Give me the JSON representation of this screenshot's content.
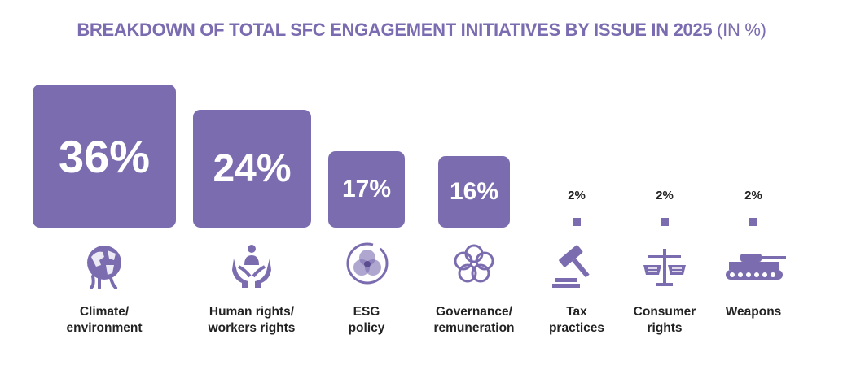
{
  "title": "BREAKDOWN OF TOTAL SFC ENGAGEMENT INITIATIVES BY ISSUE IN 2025",
  "unit": "(IN %)",
  "colors": {
    "accent": "#7b6cb0",
    "text": "#222222"
  },
  "chart_data": {
    "type": "bar",
    "categories": [
      "Climate/ environment",
      "Human rights/ workers rights",
      "ESG policy",
      "Governance/ remuneration",
      "Tax practices",
      "Consumer rights",
      "Weapons"
    ],
    "values": [
      36,
      24,
      17,
      16,
      2,
      2,
      2
    ],
    "value_labels": [
      "36%",
      "24%",
      "17%",
      "16%",
      "2%",
      "2%",
      "2%"
    ],
    "title": "BREAKDOWN OF TOTAL SFC ENGAGEMENT INITIATIVES BY ISSUE IN 2025",
    "unit": "(IN %)"
  },
  "items": [
    {
      "value_label": "36%",
      "label_lines": [
        "Climate/",
        "environment"
      ],
      "icon": "globe-icon"
    },
    {
      "value_label": "24%",
      "label_lines": [
        "Human rights/",
        "workers rights"
      ],
      "icon": "hands-people-icon"
    },
    {
      "value_label": "17%",
      "label_lines": [
        "ESG",
        "policy"
      ],
      "icon": "venn-circle-icon"
    },
    {
      "value_label": "16%",
      "label_lines": [
        "Governance/",
        "remuneration"
      ],
      "icon": "flower-rings-icon"
    },
    {
      "value_label": "2%",
      "label_lines": [
        "Tax",
        "practices"
      ],
      "icon": "gavel-icon"
    },
    {
      "value_label": "2%",
      "label_lines": [
        "Consumer",
        "rights"
      ],
      "icon": "scale-baskets-icon"
    },
    {
      "value_label": "2%",
      "label_lines": [
        "Weapons"
      ],
      "icon": "tank-icon"
    }
  ]
}
